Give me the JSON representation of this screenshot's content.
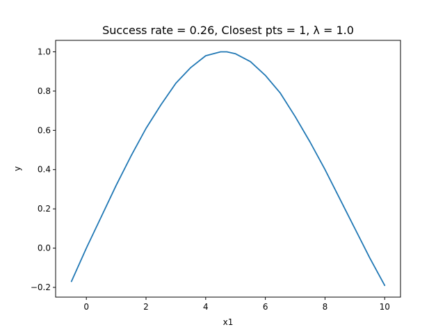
{
  "chart_data": {
    "type": "line",
    "title": "Success rate = 0.26, Closest pts = 1, λ = 1.0",
    "xlabel": "x1",
    "ylabel": "y",
    "xlim": [
      -1.03,
      10.53
    ],
    "ylim": [
      -0.2496,
      1.0584
    ],
    "xticks": [
      0,
      2,
      4,
      6,
      8,
      10
    ],
    "xtick_labels": [
      "0",
      "2",
      "4",
      "6",
      "8",
      "10"
    ],
    "yticks": [
      -0.2,
      0.0,
      0.2,
      0.4,
      0.6,
      0.8,
      1.0
    ],
    "ytick_labels": [
      "−0.2",
      "0.0",
      "0.2",
      "0.4",
      "0.6",
      "0.8",
      "1.0"
    ],
    "grid": false,
    "color": "#1f77b4",
    "series": [
      {
        "x": [
          -0.5,
          0.0,
          0.5,
          1.0,
          1.5,
          2.0,
          2.5,
          3.0,
          3.5,
          4.0,
          4.5,
          4.71,
          5.0,
          5.5,
          6.0,
          6.5,
          7.0,
          7.5,
          8.0,
          8.5,
          9.0,
          9.5,
          10.0
        ],
        "y": [
          -0.17,
          0.0,
          0.16,
          0.32,
          0.47,
          0.61,
          0.73,
          0.84,
          0.92,
          0.98,
          1.0,
          1.0,
          0.99,
          0.95,
          0.88,
          0.79,
          0.67,
          0.54,
          0.4,
          0.25,
          0.1,
          -0.05,
          -0.19
        ]
      }
    ]
  }
}
